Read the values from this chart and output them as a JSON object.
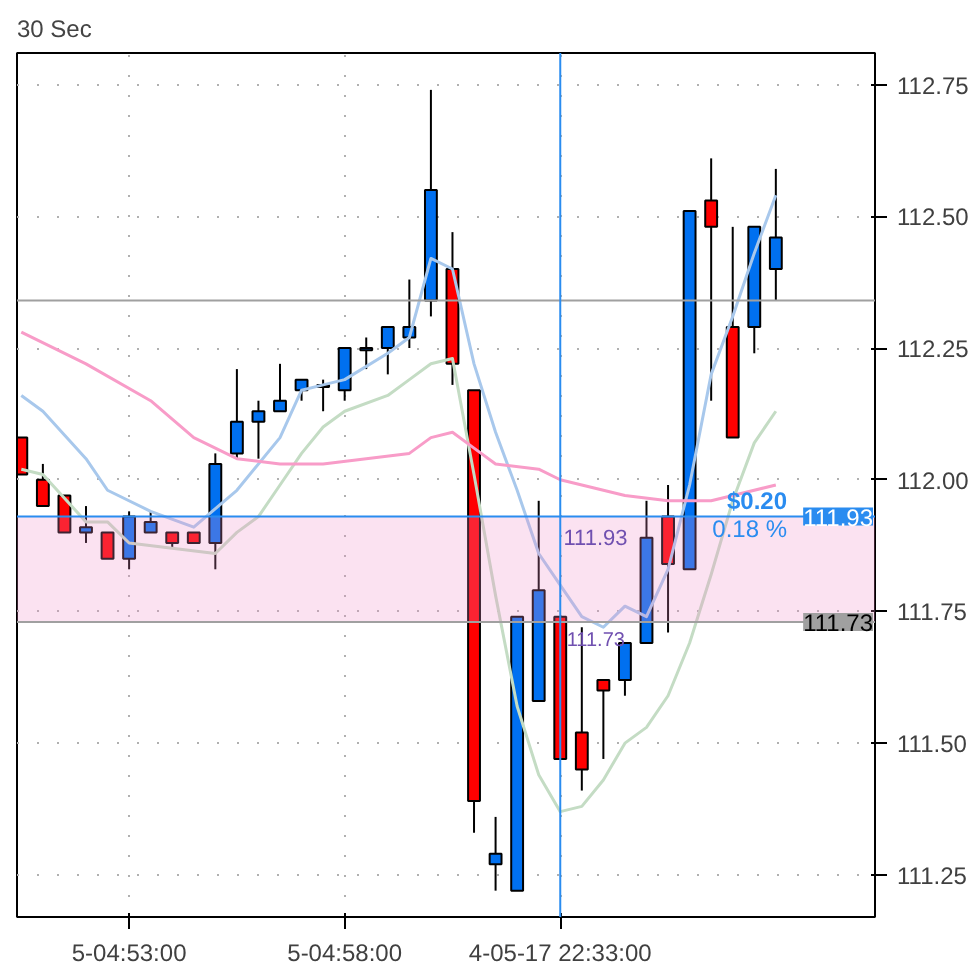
{
  "chart_data": {
    "type": "candlestick",
    "title": "30 Sec",
    "categories": [
      null,
      null,
      null,
      null,
      null,
      "5-04:53:00",
      null,
      null,
      null,
      null,
      null,
      null,
      null,
      null,
      null,
      "5-04:58:00",
      null,
      null,
      null,
      null,
      null,
      null,
      null,
      null,
      null,
      "4-05-17 22:33:00",
      null,
      null,
      null,
      null,
      null,
      null,
      null,
      null,
      null,
      null
    ],
    "ohlc": [
      [
        112.08,
        112.08,
        112.01,
        112.01
      ],
      [
        112.0,
        112.03,
        111.95,
        111.95
      ],
      [
        111.97,
        111.97,
        111.9,
        111.9
      ],
      [
        111.9,
        111.95,
        111.88,
        111.91
      ],
      [
        111.9,
        111.9,
        111.85,
        111.85
      ],
      [
        111.85,
        111.94,
        111.83,
        111.93
      ],
      [
        111.9,
        111.94,
        111.9,
        111.92
      ],
      [
        111.9,
        111.9,
        111.87,
        111.88
      ],
      [
        111.9,
        111.9,
        111.88,
        111.88
      ],
      [
        111.88,
        112.05,
        111.83,
        112.03
      ],
      [
        112.05,
        112.21,
        112.04,
        112.11
      ],
      [
        112.11,
        112.15,
        112.04,
        112.13
      ],
      [
        112.13,
        112.22,
        112.13,
        112.15
      ],
      [
        112.17,
        112.19,
        112.15,
        112.19
      ],
      [
        112.18,
        112.19,
        112.13,
        112.18
      ],
      [
        112.17,
        112.25,
        112.15,
        112.25
      ],
      [
        112.25,
        112.27,
        112.21,
        112.25
      ],
      [
        112.25,
        112.29,
        112.2,
        112.29
      ],
      [
        112.27,
        112.38,
        112.25,
        112.29
      ],
      [
        112.34,
        112.74,
        112.31,
        112.55
      ],
      [
        112.4,
        112.47,
        112.18,
        112.22
      ],
      [
        112.17,
        112.17,
        111.33,
        111.39
      ],
      [
        111.27,
        111.36,
        111.22,
        111.29
      ],
      [
        111.22,
        111.74,
        111.22,
        111.74
      ],
      [
        111.58,
        111.96,
        111.58,
        111.79
      ],
      [
        111.74,
        111.74,
        111.47,
        111.47
      ],
      [
        111.52,
        111.72,
        111.41,
        111.45
      ],
      [
        111.62,
        111.62,
        111.47,
        111.6
      ],
      [
        111.62,
        111.69,
        111.59,
        111.69
      ],
      [
        111.69,
        111.96,
        111.69,
        111.89
      ],
      [
        111.93,
        111.99,
        111.71,
        111.84
      ],
      [
        111.83,
        112.51,
        111.83,
        112.51
      ],
      [
        112.53,
        112.61,
        112.15,
        112.48
      ],
      [
        112.29,
        112.48,
        112.08,
        112.08
      ],
      [
        112.29,
        112.48,
        112.24,
        112.48
      ],
      [
        112.4,
        112.59,
        112.34,
        112.46
      ]
    ],
    "colors": [
      "#ff0000",
      "#ff0000",
      "#ff0000",
      "#0070f0",
      "#ff0000",
      "#0070f0",
      "#0070f0",
      "#ff0000",
      "#ff0000",
      "#0070f0",
      "#0070f0",
      "#0070f0",
      "#0070f0",
      "#0070f0",
      "#0070f0",
      "#0070f0",
      "#0070f0",
      "#0070f0",
      "#0070f0",
      "#0070f0",
      "#ff0000",
      "#ff0000",
      "#0070f0",
      "#0070f0",
      "#0070f0",
      "#ff0000",
      "#ff0000",
      "#ff0000",
      "#0070f0",
      "#0070f0",
      "#ff0000",
      "#0070f0",
      "#ff0000",
      "#ff0000",
      "#0070f0",
      "#0070f0"
    ],
    "series": [
      {
        "type": "line",
        "color": "#a8c8ec",
        "values": [
          112.16,
          112.13,
          null,
          112.04,
          111.98,
          null,
          111.94,
          null,
          111.91,
          null,
          111.98,
          null,
          112.08,
          112.17,
          112.18,
          112.19,
          null,
          112.24,
          112.27,
          112.42,
          112.4,
          112.22,
          112.09,
          111.98,
          111.86,
          111.8,
          111.74,
          111.72,
          111.76,
          111.74,
          111.83,
          111.99,
          112.2,
          112.31,
          112.43,
          112.54
        ]
      },
      {
        "type": "line",
        "color": "#c4dcc4",
        "values": [
          112.02,
          112.01,
          null,
          111.92,
          111.92,
          111.88,
          null,
          111.87,
          null,
          111.86,
          111.9,
          111.93,
          111.99,
          112.05,
          112.1,
          112.13,
          null,
          112.16,
          112.19,
          112.22,
          112.23,
          112.01,
          111.78,
          111.57,
          111.44,
          111.37,
          111.38,
          111.43,
          111.5,
          111.53,
          111.59,
          111.69,
          111.82,
          111.96,
          112.07,
          112.13
        ]
      },
      {
        "type": "line",
        "color": "#f89cc8",
        "values": [
          112.28,
          null,
          null,
          112.22,
          null,
          null,
          112.15,
          null,
          112.08,
          null,
          112.04,
          null,
          112.03,
          null,
          112.03,
          null,
          112.04,
          null,
          112.05,
          112.08,
          112.09,
          112.06,
          112.03,
          null,
          112.02,
          112.0,
          111.99,
          null,
          111.97,
          null,
          111.96,
          null,
          111.96,
          111.97,
          null,
          111.99
        ]
      }
    ],
    "ylim": [
      111.17,
      112.81
    ],
    "yticks": [
      {
        "value": 111.25,
        "label": "111.25"
      },
      {
        "value": 111.5,
        "label": "111.50"
      },
      {
        "value": 111.75,
        "label": "111.75"
      },
      {
        "value": 112.0,
        "label": "112.00"
      },
      {
        "value": 112.25,
        "label": "112.25"
      },
      {
        "value": 112.5,
        "label": "112.50"
      },
      {
        "value": 112.75,
        "label": "112.75"
      }
    ],
    "ref_lines": [
      {
        "axis": "y",
        "value": 112.34,
        "label": null,
        "color": "#a0a0a0"
      },
      {
        "axis": "y",
        "value": 111.93,
        "label": "111.93",
        "color": "#2a8cf0"
      },
      {
        "axis": "y",
        "value": 111.73,
        "label": "111.73",
        "color": "#a0a0a0"
      },
      {
        "axis": "x",
        "value": "4-05-17 22:33:00",
        "color": "#2a8cf0"
      }
    ],
    "bands": [
      {
        "axis": "y",
        "from": 111.73,
        "to": 111.93,
        "color": "#f08ac8"
      }
    ],
    "annotations": [
      "111.93",
      "111.73",
      "$0.20",
      "0.18 %"
    ],
    "grid": true
  }
}
